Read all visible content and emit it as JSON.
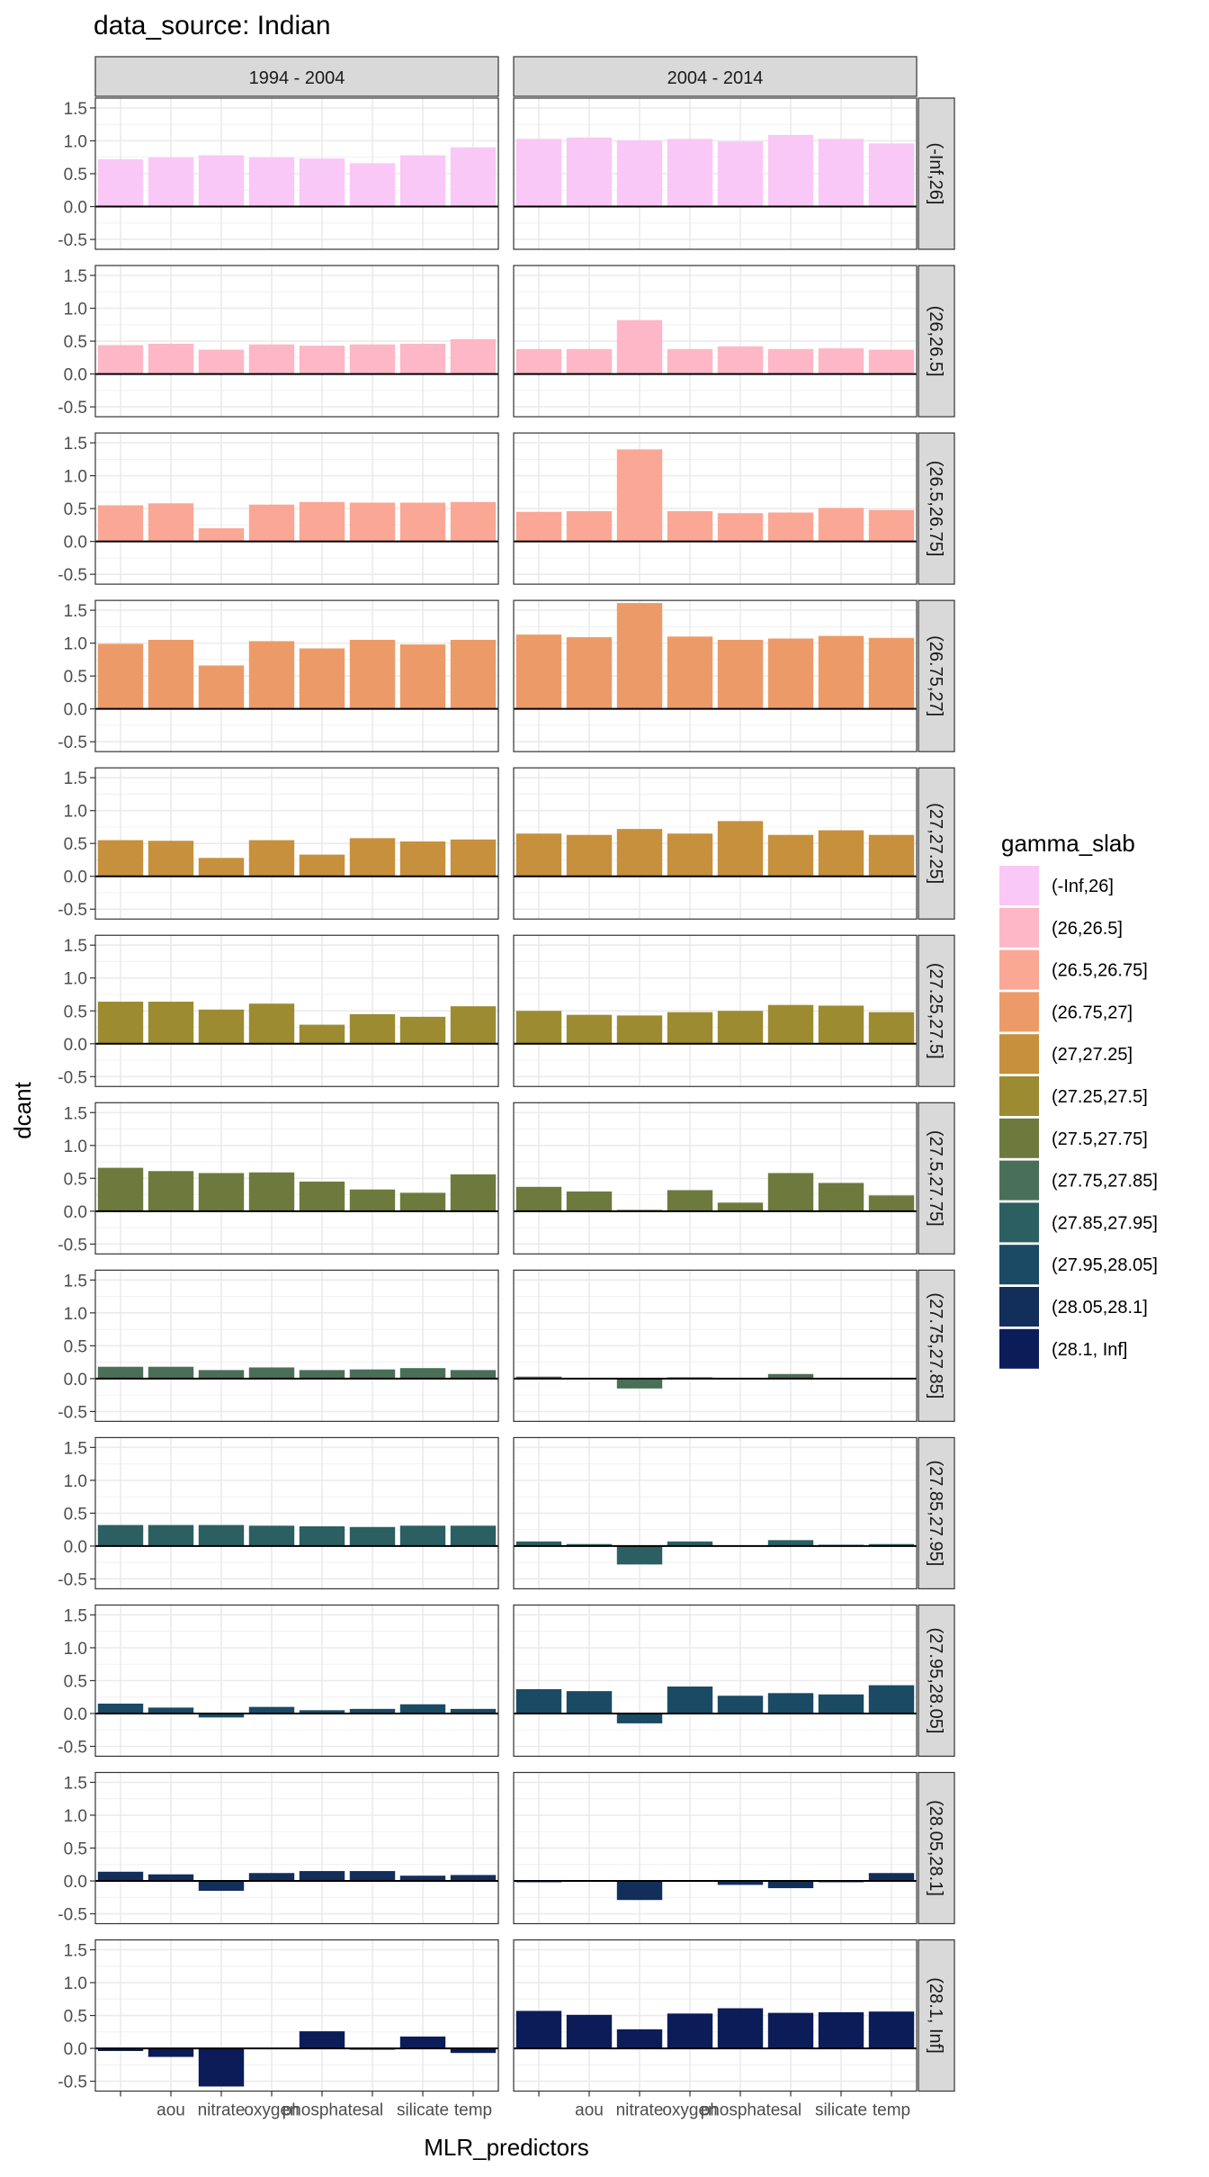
{
  "chart_data": {
    "type": "bar",
    "title": "data_source: Indian",
    "xlabel": "MLR_predictors",
    "ylabel": "dcant",
    "ylim": [
      -0.65,
      1.65
    ],
    "yticks": [
      -0.5,
      0.0,
      0.5,
      1.0,
      1.5
    ],
    "ytick_labels": [
      "-0.5",
      "0.0",
      "0.5",
      "1.0",
      "1.5"
    ],
    "categories": [
      "",
      "aou",
      "nitrate",
      "oxygen",
      "phosphate",
      "sal",
      "silicate",
      "temp"
    ],
    "columns": [
      "1994 - 2004",
      "2004 - 2014"
    ],
    "grid": true,
    "legend": {
      "title": "gamma_slab",
      "placement": "right",
      "entries": [
        {
          "label": "(-Inf,26]",
          "color": "#F9C8F6"
        },
        {
          "label": "(26,26.5]",
          "color": "#FDB7C6"
        },
        {
          "label": "(26.5,26.75]",
          "color": "#FBA796"
        },
        {
          "label": "(26.75,27]",
          "color": "#EC9B68"
        },
        {
          "label": "(27,27.25]",
          "color": "#C6903D"
        },
        {
          "label": "(27.25,27.5]",
          "color": "#9C8B31"
        },
        {
          "label": "(27.5,27.75]",
          "color": "#6E7A3D"
        },
        {
          "label": "(27.75,27.85]",
          "color": "#4A6F58"
        },
        {
          "label": "(27.85,27.95]",
          "color": "#2B5F62"
        },
        {
          "label": "(27.95,28.05]",
          "color": "#1A4A64"
        },
        {
          "label": "(28.05,28.1]",
          "color": "#122E5B"
        },
        {
          "label": "(28.1, Inf]",
          "color": "#0B1C59"
        }
      ]
    },
    "rows": [
      {
        "label": "(-Inf,26]",
        "color": "#F9C8F6",
        "values": [
          [
            0.72,
            0.75,
            0.78,
            0.75,
            0.73,
            0.66,
            0.78,
            0.9
          ],
          [
            1.03,
            1.05,
            1.01,
            1.03,
            0.99,
            1.09,
            1.03,
            0.96
          ]
        ]
      },
      {
        "label": "(26,26.5]",
        "color": "#FDB7C6",
        "values": [
          [
            0.44,
            0.46,
            0.37,
            0.45,
            0.43,
            0.45,
            0.46,
            0.53
          ],
          [
            0.38,
            0.38,
            0.82,
            0.38,
            0.42,
            0.38,
            0.39,
            0.37
          ]
        ]
      },
      {
        "label": "(26.5,26.75]",
        "color": "#FBA796",
        "values": [
          [
            0.55,
            0.58,
            0.2,
            0.56,
            0.6,
            0.59,
            0.59,
            0.6
          ],
          [
            0.45,
            0.46,
            1.4,
            0.46,
            0.43,
            0.44,
            0.51,
            0.48
          ]
        ]
      },
      {
        "label": "(26.75,27]",
        "color": "#EC9B68",
        "values": [
          [
            0.99,
            1.05,
            0.66,
            1.03,
            0.92,
            1.05,
            0.98,
            1.05
          ],
          [
            1.13,
            1.09,
            1.61,
            1.1,
            1.05,
            1.07,
            1.11,
            1.08
          ]
        ]
      },
      {
        "label": "(27,27.25]",
        "color": "#C6903D",
        "values": [
          [
            0.55,
            0.54,
            0.28,
            0.55,
            0.33,
            0.58,
            0.53,
            0.56
          ],
          [
            0.65,
            0.63,
            0.72,
            0.65,
            0.84,
            0.63,
            0.7,
            0.63
          ]
        ]
      },
      {
        "label": "(27.25,27.5]",
        "color": "#9C8B31",
        "values": [
          [
            0.64,
            0.64,
            0.52,
            0.61,
            0.29,
            0.45,
            0.41,
            0.57
          ],
          [
            0.5,
            0.44,
            0.43,
            0.48,
            0.5,
            0.59,
            0.58,
            0.48
          ]
        ]
      },
      {
        "label": "(27.5,27.75]",
        "color": "#6E7A3D",
        "values": [
          [
            0.66,
            0.61,
            0.58,
            0.59,
            0.45,
            0.33,
            0.28,
            0.56
          ],
          [
            0.37,
            0.3,
            0.02,
            0.32,
            0.13,
            0.58,
            0.43,
            0.24
          ]
        ]
      },
      {
        "label": "(27.75,27.85]",
        "color": "#4A6F58",
        "values": [
          [
            0.18,
            0.18,
            0.13,
            0.17,
            0.13,
            0.14,
            0.16,
            0.13
          ],
          [
            0.03,
            0.0,
            -0.15,
            0.02,
            0.01,
            0.07,
            0.0,
            0.0
          ]
        ]
      },
      {
        "label": "(27.85,27.95]",
        "color": "#2B5F62",
        "values": [
          [
            0.32,
            0.32,
            0.32,
            0.31,
            0.3,
            0.29,
            0.31,
            0.31
          ],
          [
            0.07,
            0.03,
            -0.28,
            0.07,
            0.0,
            0.09,
            0.02,
            0.03
          ]
        ]
      },
      {
        "label": "(27.95,28.05]",
        "color": "#1A4A64",
        "values": [
          [
            0.15,
            0.09,
            -0.06,
            0.1,
            0.05,
            0.07,
            0.14,
            0.07
          ],
          [
            0.37,
            0.34,
            -0.15,
            0.41,
            0.27,
            0.31,
            0.29,
            0.43
          ]
        ]
      },
      {
        "label": "(28.05,28.1]",
        "color": "#122E5B",
        "values": [
          [
            0.14,
            0.1,
            -0.15,
            0.12,
            0.15,
            0.15,
            0.08,
            0.09
          ],
          [
            -0.02,
            0.0,
            -0.29,
            0.0,
            -0.06,
            -0.11,
            -0.02,
            0.12
          ]
        ]
      },
      {
        "label": "(28.1, Inf]",
        "color": "#0B1C59",
        "values": [
          [
            -0.04,
            -0.13,
            -0.58,
            0.0,
            0.26,
            -0.02,
            0.18,
            -0.07
          ],
          [
            0.57,
            0.51,
            0.29,
            0.53,
            0.61,
            0.54,
            0.55,
            0.56
          ]
        ]
      }
    ]
  }
}
